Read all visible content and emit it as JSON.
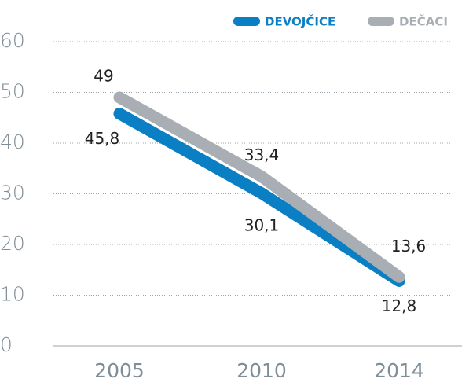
{
  "chart_data": {
    "type": "line",
    "categories": [
      "2005",
      "2010",
      "2014"
    ],
    "series": [
      {
        "name": "DEVOJČICE",
        "color": "#0a7fc4",
        "values": [
          45.8,
          30.1,
          12.8
        ],
        "value_labels": [
          "45,8",
          "30,1",
          "12,8"
        ]
      },
      {
        "name": "DEČACI",
        "color": "#a8aeb3",
        "values": [
          49,
          33.4,
          13.6
        ],
        "value_labels": [
          "49",
          "33,4",
          "13,6"
        ]
      }
    ],
    "ylim": [
      0,
      60
    ],
    "yticks": [
      0,
      10,
      20,
      30,
      40,
      50,
      60
    ],
    "grid": true,
    "legend": "top-right"
  }
}
